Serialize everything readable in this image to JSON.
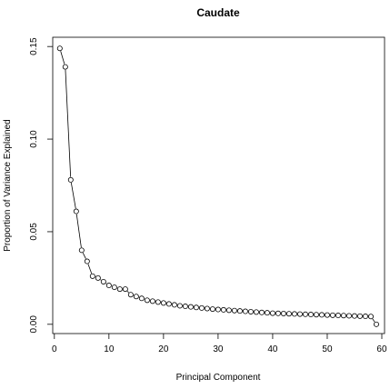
{
  "chart_data": {
    "type": "line",
    "title": "Caudate",
    "xlabel": "Principal Component",
    "ylabel": "Proportion of Variance Explained",
    "xlim": [
      -0.3,
      60.5
    ],
    "ylim": [
      -0.005,
      0.155
    ],
    "xticks": [
      0,
      10,
      20,
      30,
      40,
      50,
      60
    ],
    "yticks": [
      0.0,
      0.05,
      0.1,
      0.15
    ],
    "xtick_labels": [
      "0",
      "10",
      "20",
      "30",
      "40",
      "50",
      "60"
    ],
    "ytick_labels": [
      "0.00",
      "0.05",
      "0.10",
      "0.15"
    ],
    "grid": false,
    "marker": "open-circle",
    "line_style": "overplotted (type b)",
    "x": [
      1,
      2,
      3,
      4,
      5,
      6,
      7,
      8,
      9,
      10,
      11,
      12,
      13,
      14,
      15,
      16,
      17,
      18,
      19,
      20,
      21,
      22,
      23,
      24,
      25,
      26,
      27,
      28,
      29,
      30,
      31,
      32,
      33,
      34,
      35,
      36,
      37,
      38,
      39,
      40,
      41,
      42,
      43,
      44,
      45,
      46,
      47,
      48,
      49,
      50,
      51,
      52,
      53,
      54,
      55,
      56,
      57,
      58,
      59
    ],
    "values": [
      0.149,
      0.139,
      0.078,
      0.061,
      0.04,
      0.034,
      0.026,
      0.025,
      0.023,
      0.021,
      0.02,
      0.019,
      0.019,
      0.016,
      0.015,
      0.014,
      0.013,
      0.0125,
      0.012,
      0.0115,
      0.011,
      0.0105,
      0.01,
      0.0097,
      0.0094,
      0.0091,
      0.0088,
      0.0085,
      0.0082,
      0.008,
      0.0078,
      0.0076,
      0.0074,
      0.0072,
      0.007,
      0.0068,
      0.0066,
      0.0064,
      0.0062,
      0.006,
      0.0059,
      0.0058,
      0.0057,
      0.0056,
      0.0055,
      0.0054,
      0.0053,
      0.0052,
      0.0051,
      0.005,
      0.0049,
      0.0048,
      0.0047,
      0.0046,
      0.0045,
      0.0044,
      0.0043,
      0.0042,
      0.0
    ]
  }
}
